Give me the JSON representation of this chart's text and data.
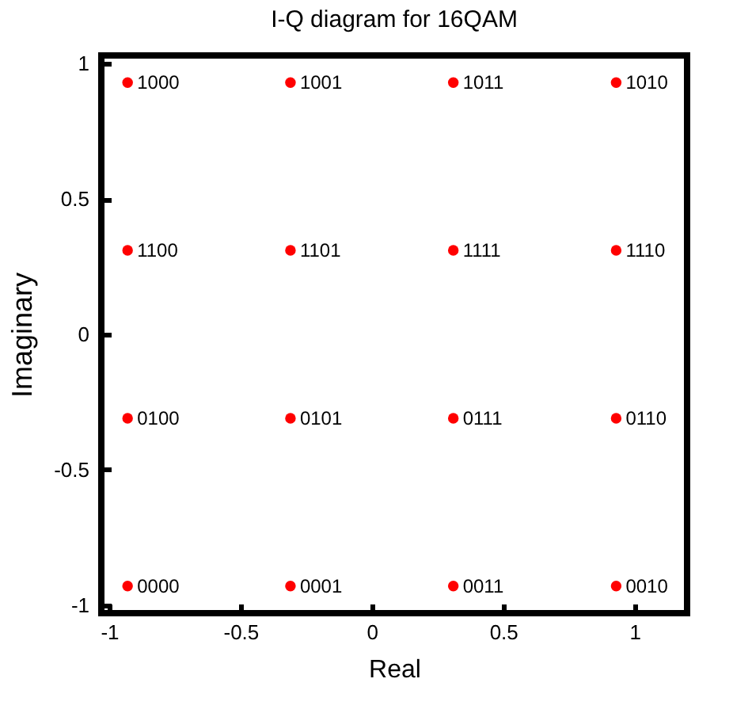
{
  "chart_data": {
    "type": "scatter",
    "title": "I-Q diagram for 16QAM",
    "xlabel": "Real",
    "ylabel": "Imaginary",
    "x": [
      -0.93,
      -0.31,
      0.31,
      0.93,
      -0.93,
      -0.31,
      0.31,
      0.93,
      -0.93,
      -0.31,
      0.31,
      0.93,
      -0.93,
      -0.31,
      0.31,
      0.93
    ],
    "series": [
      {
        "color": "#ff0000",
        "values": [
          0.93,
          0.93,
          0.93,
          0.93,
          0.31,
          0.31,
          0.31,
          0.31,
          -0.31,
          -0.31,
          -0.31,
          -0.31,
          -0.93,
          -0.93,
          -0.93,
          -0.93
        ]
      }
    ],
    "annotations": [
      {
        "text": "1000",
        "x": -0.93,
        "y": 0.93
      },
      {
        "text": "1001",
        "x": -0.31,
        "y": 0.93
      },
      {
        "text": "1011",
        "x": 0.31,
        "y": 0.93
      },
      {
        "text": "1010",
        "x": 0.93,
        "y": 0.93
      },
      {
        "text": "1100",
        "x": -0.93,
        "y": 0.31
      },
      {
        "text": "1101",
        "x": -0.31,
        "y": 0.31
      },
      {
        "text": "1111",
        "x": 0.31,
        "y": 0.31
      },
      {
        "text": "1110",
        "x": 0.93,
        "y": 0.31
      },
      {
        "text": "0100",
        "x": -0.93,
        "y": -0.31
      },
      {
        "text": "0101",
        "x": -0.31,
        "y": -0.31
      },
      {
        "text": "0111",
        "x": 0.31,
        "y": -0.31
      },
      {
        "text": "0110",
        "x": 0.93,
        "y": -0.31
      },
      {
        "text": "0000",
        "x": -0.93,
        "y": -0.93
      },
      {
        "text": "0001",
        "x": -0.31,
        "y": -0.93
      },
      {
        "text": "0011",
        "x": 0.31,
        "y": -0.93
      },
      {
        "text": "0010",
        "x": 0.93,
        "y": -0.93
      }
    ],
    "xlim": [
      -1.03,
      1.2
    ],
    "ylim": [
      -1.03,
      1.03
    ],
    "xticks": [
      -1,
      -0.5,
      0,
      0.5,
      1
    ],
    "yticks": [
      -1,
      -0.5,
      0,
      0.5,
      1
    ],
    "grid": false,
    "marker": "circle"
  }
}
